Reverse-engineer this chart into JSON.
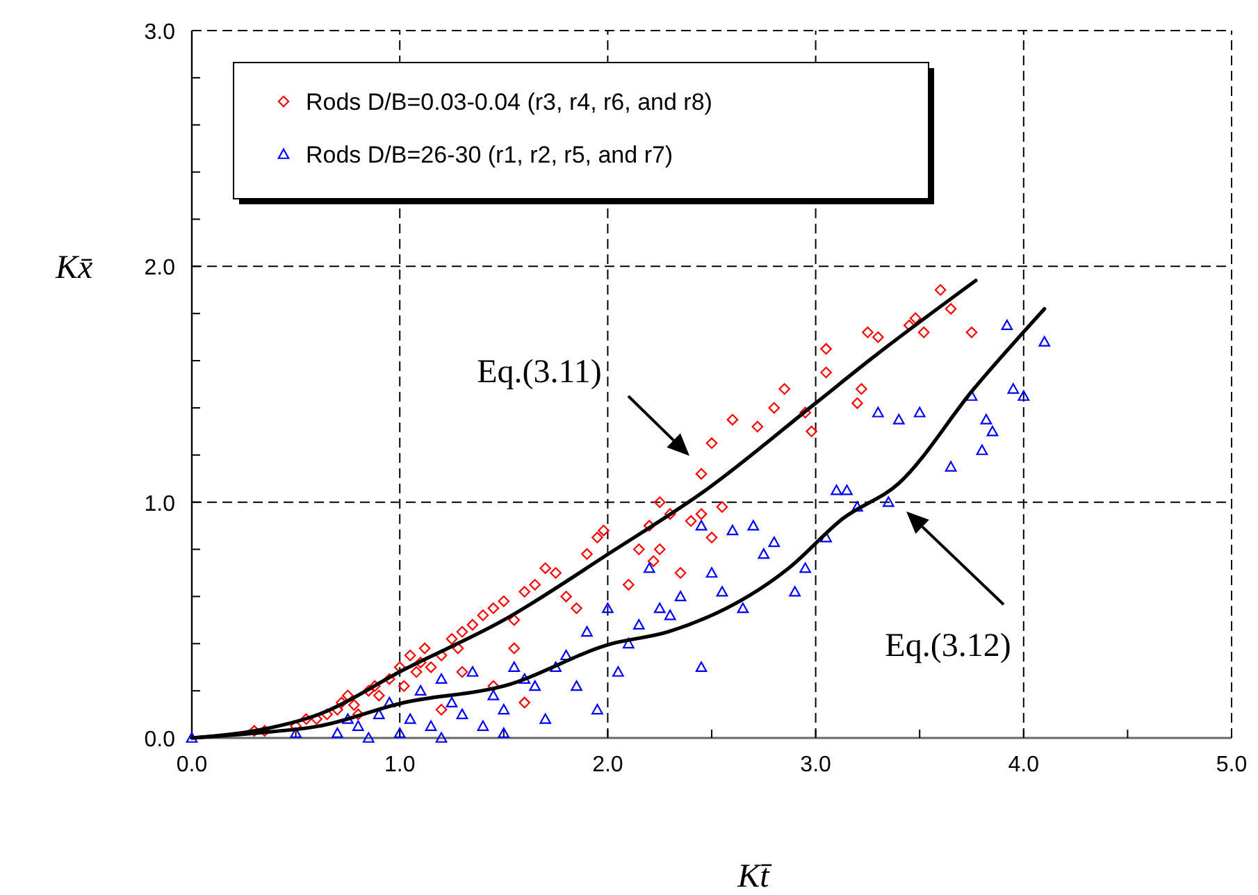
{
  "chart_data": {
    "type": "scatter",
    "xlabel": "Kt̄",
    "ylabel": "Kx̄",
    "xlim": [
      0,
      5
    ],
    "ylim": [
      0,
      3
    ],
    "xticks": [
      {
        "value": 0,
        "label": "0.0"
      },
      {
        "value": 0.5,
        "label": null
      },
      {
        "value": 1,
        "label": "1.0"
      },
      {
        "value": 1.5,
        "label": null
      },
      {
        "value": 2,
        "label": "2.0"
      },
      {
        "value": 2.5,
        "label": null
      },
      {
        "value": 3,
        "label": "3.0"
      },
      {
        "value": 3.5,
        "label": null
      },
      {
        "value": 4,
        "label": "4.0"
      },
      {
        "value": 4.5,
        "label": null
      },
      {
        "value": 5,
        "label": "5.0"
      }
    ],
    "yticks": [
      {
        "value": 0,
        "label": "0.0"
      },
      {
        "value": 0.2,
        "label": null
      },
      {
        "value": 0.4,
        "label": null
      },
      {
        "value": 0.6,
        "label": null
      },
      {
        "value": 0.8,
        "label": null
      },
      {
        "value": 1,
        "label": "1.0"
      },
      {
        "value": 1.2,
        "label": null
      },
      {
        "value": 1.4,
        "label": null
      },
      {
        "value": 1.6,
        "label": null
      },
      {
        "value": 1.8,
        "label": null
      },
      {
        "value": 2,
        "label": "2.0"
      },
      {
        "value": 2.2,
        "label": null
      },
      {
        "value": 2.4,
        "label": null
      },
      {
        "value": 2.6,
        "label": null
      },
      {
        "value": 2.8,
        "label": null
      },
      {
        "value": 3,
        "label": "3.0"
      }
    ],
    "grid": true,
    "legend": "top left",
    "annotations": [
      "Eq.(3.11)",
      "Eq.(3.12)"
    ],
    "series": [
      {
        "name": "Rods D/B=0.03-0.04 (r3, r4, r6, and r8)",
        "color": "#ff0000",
        "marker": "diamond",
        "x": [
          0.3,
          0.35,
          0.5,
          0.55,
          0.6,
          0.65,
          0.7,
          0.72,
          0.75,
          0.78,
          0.8,
          0.85,
          0.88,
          0.9,
          0.95,
          1.0,
          1.02,
          1.05,
          1.08,
          1.1,
          1.12,
          1.15,
          1.2,
          1.25,
          1.28,
          1.3,
          1.35,
          1.4,
          1.45,
          1.5,
          1.55,
          1.6,
          1.65,
          1.7,
          1.75,
          1.8,
          1.85,
          1.9,
          1.95,
          1.98,
          1.55,
          1.3,
          1.45,
          1.6,
          1.2,
          2.1,
          2.15,
          2.2,
          2.22,
          2.25,
          2.3,
          2.35,
          2.4,
          2.45,
          2.5,
          2.55,
          2.6,
          2.72,
          2.8,
          2.85,
          2.95,
          2.98,
          3.05,
          3.05,
          3.25,
          3.3,
          3.45,
          3.48,
          3.52,
          3.6,
          3.65,
          3.75,
          2.5,
          2.45,
          2.25,
          3.2,
          3.22
        ],
        "values": [
          0.03,
          0.03,
          0.05,
          0.08,
          0.08,
          0.1,
          0.12,
          0.15,
          0.18,
          0.14,
          0.1,
          0.2,
          0.22,
          0.18,
          0.25,
          0.3,
          0.22,
          0.35,
          0.28,
          0.32,
          0.38,
          0.3,
          0.35,
          0.42,
          0.38,
          0.45,
          0.48,
          0.52,
          0.55,
          0.58,
          0.5,
          0.62,
          0.65,
          0.72,
          0.7,
          0.6,
          0.55,
          0.78,
          0.85,
          0.88,
          0.38,
          0.28,
          0.22,
          0.15,
          0.12,
          0.65,
          0.8,
          0.9,
          0.75,
          1.0,
          0.95,
          0.7,
          0.92,
          1.12,
          1.25,
          0.98,
          1.35,
          1.32,
          1.4,
          1.48,
          1.38,
          1.3,
          1.55,
          1.65,
          1.72,
          1.7,
          1.75,
          1.78,
          1.72,
          1.9,
          1.82,
          1.72,
          0.85,
          0.95,
          0.8,
          1.42,
          1.48
        ]
      },
      {
        "name": "Rods D/B=26-30 (r1, r2, r5, and r7)",
        "color": "#0000ff",
        "marker": "triangle",
        "x": [
          0.0,
          0.5,
          0.7,
          0.75,
          0.8,
          0.85,
          0.9,
          0.95,
          1.0,
          1.05,
          1.1,
          1.15,
          1.2,
          1.25,
          1.3,
          1.35,
          1.4,
          1.45,
          1.5,
          1.55,
          1.6,
          1.65,
          1.7,
          1.75,
          1.8,
          1.85,
          1.9,
          1.95,
          2.0,
          2.05,
          2.1,
          2.15,
          2.2,
          2.25,
          2.3,
          2.35,
          2.45,
          2.45,
          2.5,
          2.55,
          2.6,
          2.65,
          2.7,
          2.75,
          2.8,
          2.9,
          2.95,
          3.05,
          3.1,
          3.15,
          3.2,
          3.3,
          3.4,
          3.5,
          3.65,
          3.75,
          3.82,
          3.85,
          3.92,
          3.95,
          4.0,
          4.1,
          3.8,
          3.35,
          1.2,
          1.5
        ],
        "values": [
          0.0,
          0.02,
          0.02,
          0.08,
          0.05,
          0.0,
          0.1,
          0.15,
          0.02,
          0.08,
          0.2,
          0.05,
          0.25,
          0.15,
          0.1,
          0.28,
          0.05,
          0.18,
          0.12,
          0.3,
          0.25,
          0.22,
          0.08,
          0.3,
          0.35,
          0.22,
          0.45,
          0.12,
          0.55,
          0.28,
          0.4,
          0.48,
          0.72,
          0.55,
          0.52,
          0.6,
          0.9,
          0.3,
          0.7,
          0.62,
          0.88,
          0.55,
          0.9,
          0.78,
          0.83,
          0.62,
          0.72,
          0.85,
          1.05,
          1.05,
          0.98,
          1.38,
          1.35,
          1.38,
          1.15,
          1.45,
          1.35,
          1.3,
          1.75,
          1.48,
          1.45,
          1.68,
          1.22,
          1.0,
          0.0,
          0.02
        ]
      },
      {
        "type": "line",
        "color": "#000000",
        "marker": "none",
        "x": [
          0,
          0.3,
          0.61,
          1.02,
          1.5,
          2.02,
          2.47,
          3.0,
          3.27,
          3.77
        ],
        "values": [
          0,
          0.03,
          0.1,
          0.29,
          0.5,
          0.79,
          1.05,
          1.42,
          1.61,
          1.94
        ]
      },
      {
        "type": "line",
        "color": "#000000",
        "marker": "none",
        "x": [
          0,
          0.3,
          0.61,
          1.02,
          1.5,
          2.02,
          2.29,
          2.87,
          3.13,
          3.4,
          3.76,
          4.1
        ],
        "values": [
          0,
          0.02,
          0.05,
          0.15,
          0.22,
          0.4,
          0.45,
          0.72,
          0.93,
          1.08,
          1.48,
          1.82
        ]
      }
    ]
  }
}
